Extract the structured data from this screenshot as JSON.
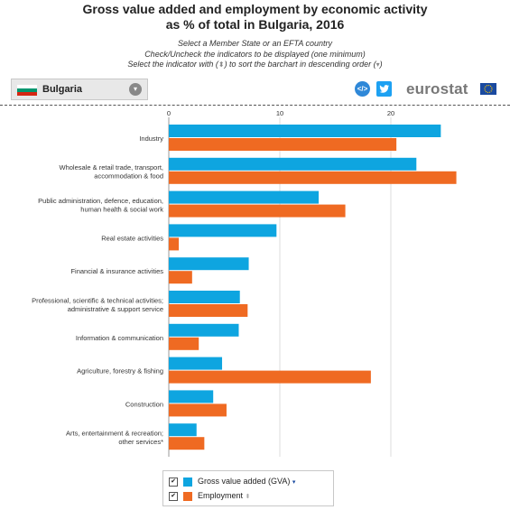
{
  "header": {
    "title_line1": "Gross value added and employment by economic activity",
    "title_line2": "as % of total in Bulgaria, 2016",
    "instruction_1": "Select a Member State or an EFTA country",
    "instruction_2": "Check/Uncheck the indicators to be displayed (one minimum)",
    "instruction_3_pre": "Select the indicator with (",
    "instruction_3_mid": ") to sort the barchart in descending order (",
    "instruction_3_post": ")",
    "sort_glyph_1": "⬍",
    "sort_glyph_2": "▾"
  },
  "country_select": {
    "value": "Bulgaria",
    "icon": "chevron-down-icon",
    "dropdown_glyph": "▾"
  },
  "share": {
    "embed_label": "</>",
    "embed_icon": "embed-icon",
    "twitter_icon": "twitter-icon"
  },
  "logo": {
    "text": "eurostat"
  },
  "colors": {
    "gva": "#0ea5e0",
    "employment": "#ef6a22",
    "flag_white": "#ffffff",
    "flag_green": "#00966e",
    "flag_red": "#d62612"
  },
  "chart_data": {
    "type": "bar",
    "orientation": "horizontal",
    "title": "Gross value added and employment by economic activity as % of total in Bulgaria, 2016",
    "xlim": [
      0,
      26
    ],
    "x_ticks": [
      0,
      10,
      20
    ],
    "grid": true,
    "legend_position": "bottom",
    "categories": [
      [
        "Industry"
      ],
      [
        "Wholesale & retail trade, transport,",
        "accommodation & food"
      ],
      [
        "Public administration, defence, education,",
        "human health & social work"
      ],
      [
        "Real estate activities"
      ],
      [
        "Financial & insurance activities"
      ],
      [
        "Professional, scientific & technical activities;",
        "administrative & support service"
      ],
      [
        "Information & communication"
      ],
      [
        "Agriculture, forestry & fishing"
      ],
      [
        "Construction"
      ],
      [
        "Arts, entertainment & recreation;",
        "other services*"
      ]
    ],
    "series": [
      {
        "name": "Gross value added (GVA)",
        "values": [
          24.5,
          22.3,
          13.5,
          9.7,
          7.2,
          6.4,
          6.3,
          4.8,
          4.0,
          2.5
        ]
      },
      {
        "name": "Employment",
        "values": [
          20.5,
          25.9,
          15.9,
          0.9,
          2.1,
          7.1,
          2.7,
          18.2,
          5.2,
          3.2
        ]
      }
    ]
  },
  "legend": {
    "items": [
      {
        "label": "Gross value added (GVA)",
        "checked": "✔",
        "sort_glyph": "▾"
      },
      {
        "label": "Employment",
        "checked": "✔",
        "sort_glyph": "⬍"
      }
    ]
  }
}
